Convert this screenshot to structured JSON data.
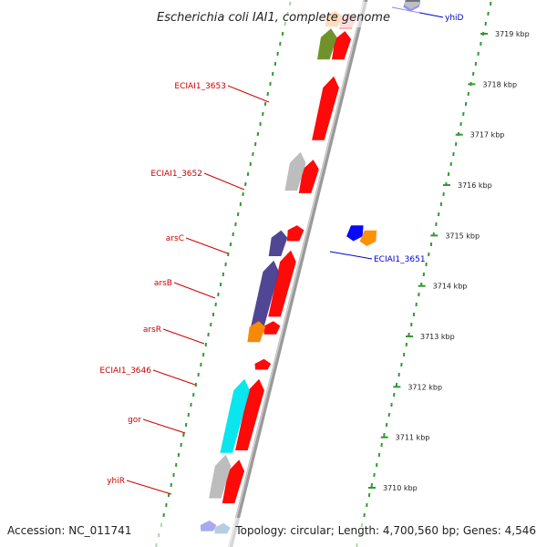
{
  "title": "Escherichia coli IAI1, complete genome",
  "footer": {
    "accession": "Accession: NC_011741",
    "summary": "Topology: circular; Length: 4,700,560 bp; Genes: 4,546"
  },
  "colors": {
    "backbone": "#9a9a9a",
    "ticks": "#339933",
    "forward_label": "#cc0000",
    "reverse_label": "#0000cc"
  },
  "ticks": [
    {
      "kbp": 3710,
      "label": "3710 kbp"
    },
    {
      "kbp": 3711,
      "label": "3711 kbp"
    },
    {
      "kbp": 3712,
      "label": "3712 kbp"
    },
    {
      "kbp": 3713,
      "label": "3713 kbp"
    },
    {
      "kbp": 3714,
      "label": "3714 kbp"
    },
    {
      "kbp": 3715,
      "label": "3715 kbp"
    },
    {
      "kbp": 3716,
      "label": "3716 kbp"
    },
    {
      "kbp": 3717,
      "label": "3717 kbp"
    },
    {
      "kbp": 3718,
      "label": "3718 kbp"
    },
    {
      "kbp": 3719,
      "label": "3719 kbp"
    }
  ],
  "gene_labels": [
    {
      "name": "yhiD",
      "strand": "reverse"
    },
    {
      "name": "ECIAI1_3653",
      "strand": "forward"
    },
    {
      "name": "ECIAI1_3652",
      "strand": "forward"
    },
    {
      "name": "arsC",
      "strand": "forward"
    },
    {
      "name": "ECIAI1_3651",
      "strand": "reverse"
    },
    {
      "name": "arsB",
      "strand": "forward"
    },
    {
      "name": "arsR",
      "strand": "forward"
    },
    {
      "name": "ECIAI1_3646",
      "strand": "forward"
    },
    {
      "name": "gor",
      "strand": "forward"
    },
    {
      "name": "yhiR",
      "strand": "forward"
    }
  ],
  "features": [
    {
      "strand": "forward",
      "color": "#ff0000",
      "start_kbp": 3718.55,
      "end_kbp": 3719.1
    },
    {
      "strand": "forward",
      "color": "#ff0000",
      "start_kbp": 3716.95,
      "end_kbp": 3718.2
    },
    {
      "strand": "forward",
      "color": "#ff0000",
      "start_kbp": 3715.9,
      "end_kbp": 3716.55
    },
    {
      "strand": "forward",
      "color": "#ff0000",
      "start_kbp": 3714.95,
      "end_kbp": 3715.25
    },
    {
      "strand": "forward",
      "color": "#ff0000",
      "start_kbp": 3713.45,
      "end_kbp": 3714.75
    },
    {
      "strand": "forward",
      "color": "#ff0000",
      "start_kbp": 3713.1,
      "end_kbp": 3713.35
    },
    {
      "strand": "forward",
      "color": "#ff0000",
      "start_kbp": 3712.4,
      "end_kbp": 3712.6
    },
    {
      "strand": "forward",
      "color": "#ff0000",
      "start_kbp": 3710.8,
      "end_kbp": 3712.2
    },
    {
      "strand": "forward",
      "color": "#ff0000",
      "start_kbp": 3709.75,
      "end_kbp": 3710.6
    },
    {
      "strand": "forward",
      "color": "#ffb0b0",
      "start_kbp": 3719.15,
      "end_kbp": 3719.45
    },
    {
      "strand": "forward",
      "color": "#bbbbbb",
      "start_kbp": 3715.95,
      "end_kbp": 3716.7
    },
    {
      "strand": "forward",
      "color": "#bbbbbb",
      "start_kbp": 3709.85,
      "end_kbp": 3710.7
    },
    {
      "strand": "forward",
      "color": "#4a3f8f",
      "start_kbp": 3714.65,
      "end_kbp": 3715.15
    },
    {
      "strand": "forward",
      "color": "#4a3f8f",
      "start_kbp": 3712.95,
      "end_kbp": 3714.55
    },
    {
      "strand": "forward",
      "color": "#ff8c00",
      "start_kbp": 3712.95,
      "end_kbp": 3713.35
    },
    {
      "strand": "forward",
      "color": "#ffb060",
      "start_kbp": 3719.2,
      "end_kbp": 3719.5
    },
    {
      "strand": "forward",
      "color": "#6b8e23",
      "start_kbp": 3718.55,
      "end_kbp": 3719.15
    },
    {
      "strand": "forward",
      "color": "#00e5ee",
      "start_kbp": 3710.75,
      "end_kbp": 3712.2
    },
    {
      "strand": "forward",
      "color": "#2020dd",
      "start_kbp": 3709.2,
      "end_kbp": 3709.4
    },
    {
      "strand": "forward",
      "color": "#4682b4",
      "start_kbp": 3709.15,
      "end_kbp": 3709.35
    },
    {
      "strand": "reverse",
      "color": "#0000ff",
      "start_kbp": 3714.95,
      "end_kbp": 3715.25
    },
    {
      "strand": "reverse",
      "color": "#ff8c00",
      "start_kbp": 3714.85,
      "end_kbp": 3715.15
    },
    {
      "strand": "reverse",
      "color": "#0000ff",
      "start_kbp": 3719.5,
      "end_kbp": 3719.75
    },
    {
      "strand": "reverse",
      "color": "#777777",
      "start_kbp": 3719.55,
      "end_kbp": 3719.85
    }
  ]
}
